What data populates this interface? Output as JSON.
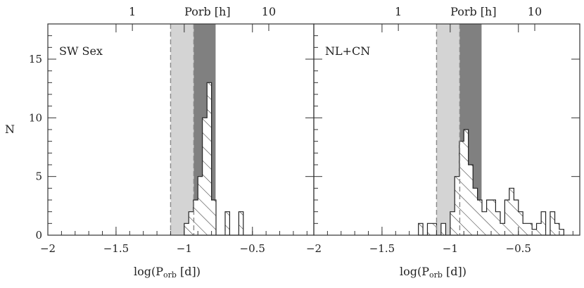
{
  "chart_data": [
    {
      "type": "histogram",
      "panel_label": "SW Sex",
      "xlabel": "log(P",
      "xlabel_sub": "orb",
      "xlabel_tail": " [d])",
      "ylabel": "N",
      "top_axis_label": "Porb [h]",
      "top_ticks": [
        {
          "label": "1",
          "value": 1
        },
        {
          "label": "10",
          "value": 10
        }
      ],
      "xlim": [
        -2.0,
        -0.05
      ],
      "ylim": [
        0,
        18
      ],
      "x_ticks": [
        -2,
        -1.5,
        -1,
        -0.5
      ],
      "x_tick_labels": [
        "−2",
        "−1.5",
        "−1",
        "−0.5"
      ],
      "y_ticks": [
        0,
        5,
        10,
        15
      ],
      "y_tick_labels": [
        "0",
        "5",
        "10",
        "15"
      ],
      "shaded_regions": [
        {
          "from": -1.1,
          "to": -0.93,
          "color": "#d4d4d4"
        },
        {
          "from": -0.93,
          "to": -0.77,
          "color": "#808080"
        }
      ],
      "dashed_lines": [
        -1.1,
        -0.93
      ],
      "bin_edges": [
        -1.0,
        -0.967,
        -0.933,
        -0.9,
        -0.867,
        -0.833,
        -0.8,
        -0.767,
        -0.733,
        -0.7,
        -0.667,
        -0.633,
        -0.6,
        -0.567,
        -0.533,
        -0.5
      ],
      "counts": [
        1,
        2,
        3,
        5,
        10,
        13,
        3,
        0,
        0,
        2,
        0,
        0,
        2,
        0,
        0
      ]
    },
    {
      "type": "histogram",
      "panel_label": "NL+CN",
      "xlabel": "log(P",
      "xlabel_sub": "orb",
      "xlabel_tail": " [d])",
      "ylabel": "",
      "top_axis_label": "Porb [h]",
      "top_ticks": [
        {
          "label": "1",
          "value": 1
        },
        {
          "label": "10",
          "value": 10
        }
      ],
      "xlim": [
        -2.0,
        -0.05
      ],
      "ylim": [
        0,
        18
      ],
      "x_ticks": [
        -2,
        -1.5,
        -1,
        -0.5
      ],
      "x_tick_labels": [
        "−2",
        "−1.5",
        "−1",
        "−0.5"
      ],
      "y_ticks": [
        0,
        5,
        10,
        15
      ],
      "y_tick_labels": [
        "",
        "",
        "",
        ""
      ],
      "shaded_regions": [
        {
          "from": -1.1,
          "to": -0.93,
          "color": "#d4d4d4"
        },
        {
          "from": -0.93,
          "to": -0.77,
          "color": "#808080"
        }
      ],
      "dashed_lines": [
        -1.1,
        -0.93
      ],
      "bin_edges": [
        -1.233,
        -1.2,
        -1.167,
        -1.133,
        -1.1,
        -1.067,
        -1.033,
        -1.0,
        -0.967,
        -0.933,
        -0.9,
        -0.867,
        -0.833,
        -0.8,
        -0.767,
        -0.733,
        -0.7,
        -0.667,
        -0.633,
        -0.6,
        -0.567,
        -0.533,
        -0.5,
        -0.467,
        -0.433,
        -0.4,
        -0.367,
        -0.333,
        -0.3,
        -0.267,
        -0.233,
        -0.2,
        -0.167
      ],
      "counts": [
        1,
        0,
        1,
        1,
        0,
        1,
        0,
        2,
        5,
        8,
        9,
        6,
        4,
        3,
        2,
        3,
        3,
        2,
        1,
        3,
        4,
        3,
        2,
        1,
        1,
        0.5,
        1,
        2,
        0,
        2,
        1,
        0.5
      ]
    }
  ]
}
